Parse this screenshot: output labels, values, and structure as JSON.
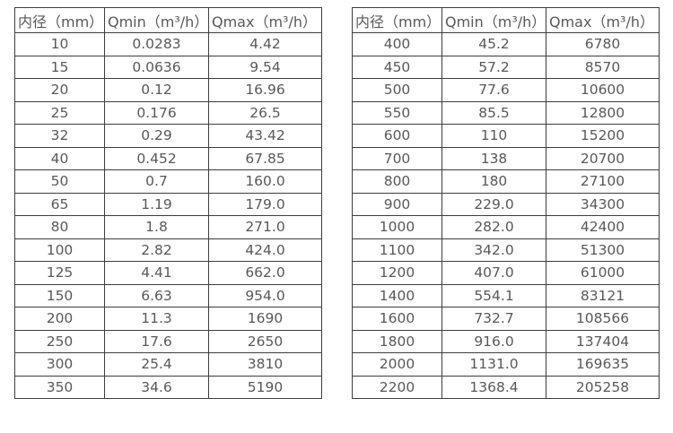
{
  "style": {
    "border_color": "#3e3e3e",
    "text_color": "#595959",
    "background": "#ffffff"
  },
  "tables": [
    {
      "name": "flow-table-small-diameters",
      "headers": [
        "内径（mm）",
        "Qmin（m³/h）",
        "Qmax（m³/h）"
      ],
      "rows": [
        [
          "10",
          "0.0283",
          "4.42"
        ],
        [
          "15",
          "0.0636",
          "9.54"
        ],
        [
          "20",
          "0.12",
          "16.96"
        ],
        [
          "25",
          "0.176",
          "26.5"
        ],
        [
          "32",
          "0.29",
          "43.42"
        ],
        [
          "40",
          "0.452",
          "67.85"
        ],
        [
          "50",
          "0.7",
          "160.0"
        ],
        [
          "65",
          "1.19",
          "179.0"
        ],
        [
          "80",
          "1.8",
          "271.0"
        ],
        [
          "100",
          "2.82",
          "424.0"
        ],
        [
          "125",
          "4.41",
          "662.0"
        ],
        [
          "150",
          "6.63",
          "954.0"
        ],
        [
          "200",
          "11.3",
          "1690"
        ],
        [
          "250",
          "17.6",
          "2650"
        ],
        [
          "300",
          "25.4",
          "3810"
        ],
        [
          "350",
          "34.6",
          "5190"
        ]
      ]
    },
    {
      "name": "flow-table-large-diameters",
      "headers": [
        "内径（mm）",
        "Qmin（m³/h）",
        "Qmax（m³/h）"
      ],
      "rows": [
        [
          "400",
          "45.2",
          "6780"
        ],
        [
          "450",
          "57.2",
          "8570"
        ],
        [
          "500",
          "77.6",
          "10600"
        ],
        [
          "550",
          "85.5",
          "12800"
        ],
        [
          "600",
          "110",
          "15200"
        ],
        [
          "700",
          "138",
          "20700"
        ],
        [
          "800",
          "180",
          "27100"
        ],
        [
          "900",
          "229.0",
          "34300"
        ],
        [
          "1000",
          "282.0",
          "42400"
        ],
        [
          "1100",
          "342.0",
          "51300"
        ],
        [
          "1200",
          "407.0",
          "61000"
        ],
        [
          "1400",
          "554.1",
          "83121"
        ],
        [
          "1600",
          "732.7",
          "108566"
        ],
        [
          "1800",
          "916.0",
          "137404"
        ],
        [
          "2000",
          "1131.0",
          "169635"
        ],
        [
          "2200",
          "1368.4",
          "205258"
        ]
      ]
    }
  ]
}
